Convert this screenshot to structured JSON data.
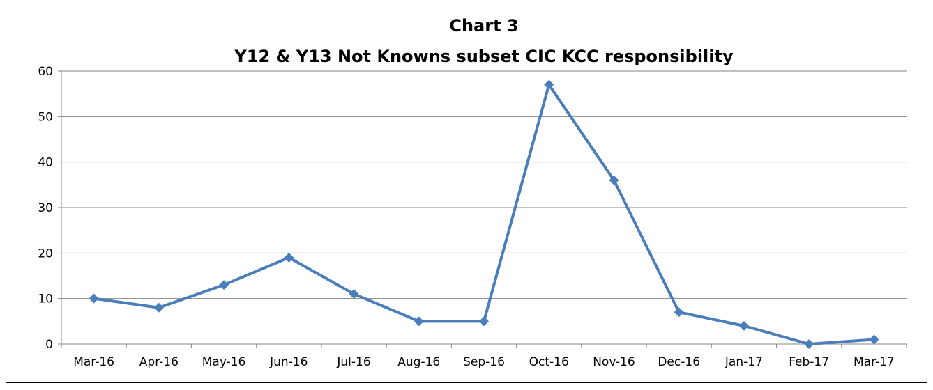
{
  "chart_data": {
    "type": "line",
    "title": "Chart 3",
    "subtitle": "Y12 & Y13 Not Knowns subset CIC KCC responsibility",
    "categories": [
      "Mar-16",
      "Apr-16",
      "May-16",
      "Jun-16",
      "Jul-16",
      "Aug-16",
      "Sep-16",
      "Oct-16",
      "Nov-16",
      "Dec-16",
      "Jan-17",
      "Feb-17",
      "Mar-17"
    ],
    "series": [
      {
        "name": "Not Knowns",
        "color": "#4a7ebb",
        "values": [
          10,
          8,
          13,
          19,
          11,
          5,
          5,
          57,
          36,
          7,
          4,
          0,
          1
        ]
      }
    ],
    "ylim": [
      0,
      60
    ],
    "yticks": [
      0,
      10,
      20,
      30,
      40,
      50,
      60
    ],
    "grid": true
  }
}
